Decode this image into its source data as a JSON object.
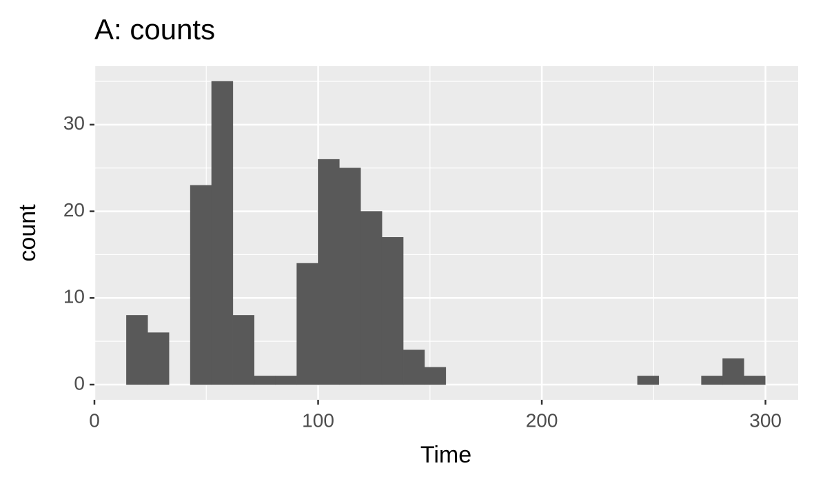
{
  "chart_data": {
    "type": "histogram",
    "title": "A: counts",
    "x_label": "Time",
    "y_label": "count",
    "bins": [
      14.3,
      23.82,
      33.34,
      42.86,
      52.38,
      61.9,
      71.42,
      80.94,
      90.46,
      99.98,
      109.5,
      119.02,
      128.54,
      138.06,
      147.58,
      157.1,
      166.62,
      176.14,
      185.66,
      195.18,
      204.7,
      214.22,
      223.74,
      233.26,
      242.78,
      252.3,
      261.82,
      271.34,
      280.86,
      290.38,
      299.9
    ],
    "values": [
      8,
      6,
      0,
      23,
      35,
      8,
      1,
      1,
      14,
      26,
      25,
      20,
      17,
      4,
      2,
      0,
      0,
      0,
      0,
      0,
      0,
      0,
      0,
      0,
      1,
      0,
      0,
      1,
      3,
      1
    ],
    "color": "#595959",
    "xlim": [
      0,
      314.6
    ],
    "ylim": [
      -1.75,
      36.75
    ],
    "xticks": [
      0,
      100,
      200,
      300
    ],
    "yticks": [
      0,
      10,
      20,
      30
    ],
    "x_minor_gridlines": [
      50,
      150,
      250
    ],
    "y_minor_gridlines": [
      5,
      15,
      25,
      35
    ],
    "grid": true
  }
}
